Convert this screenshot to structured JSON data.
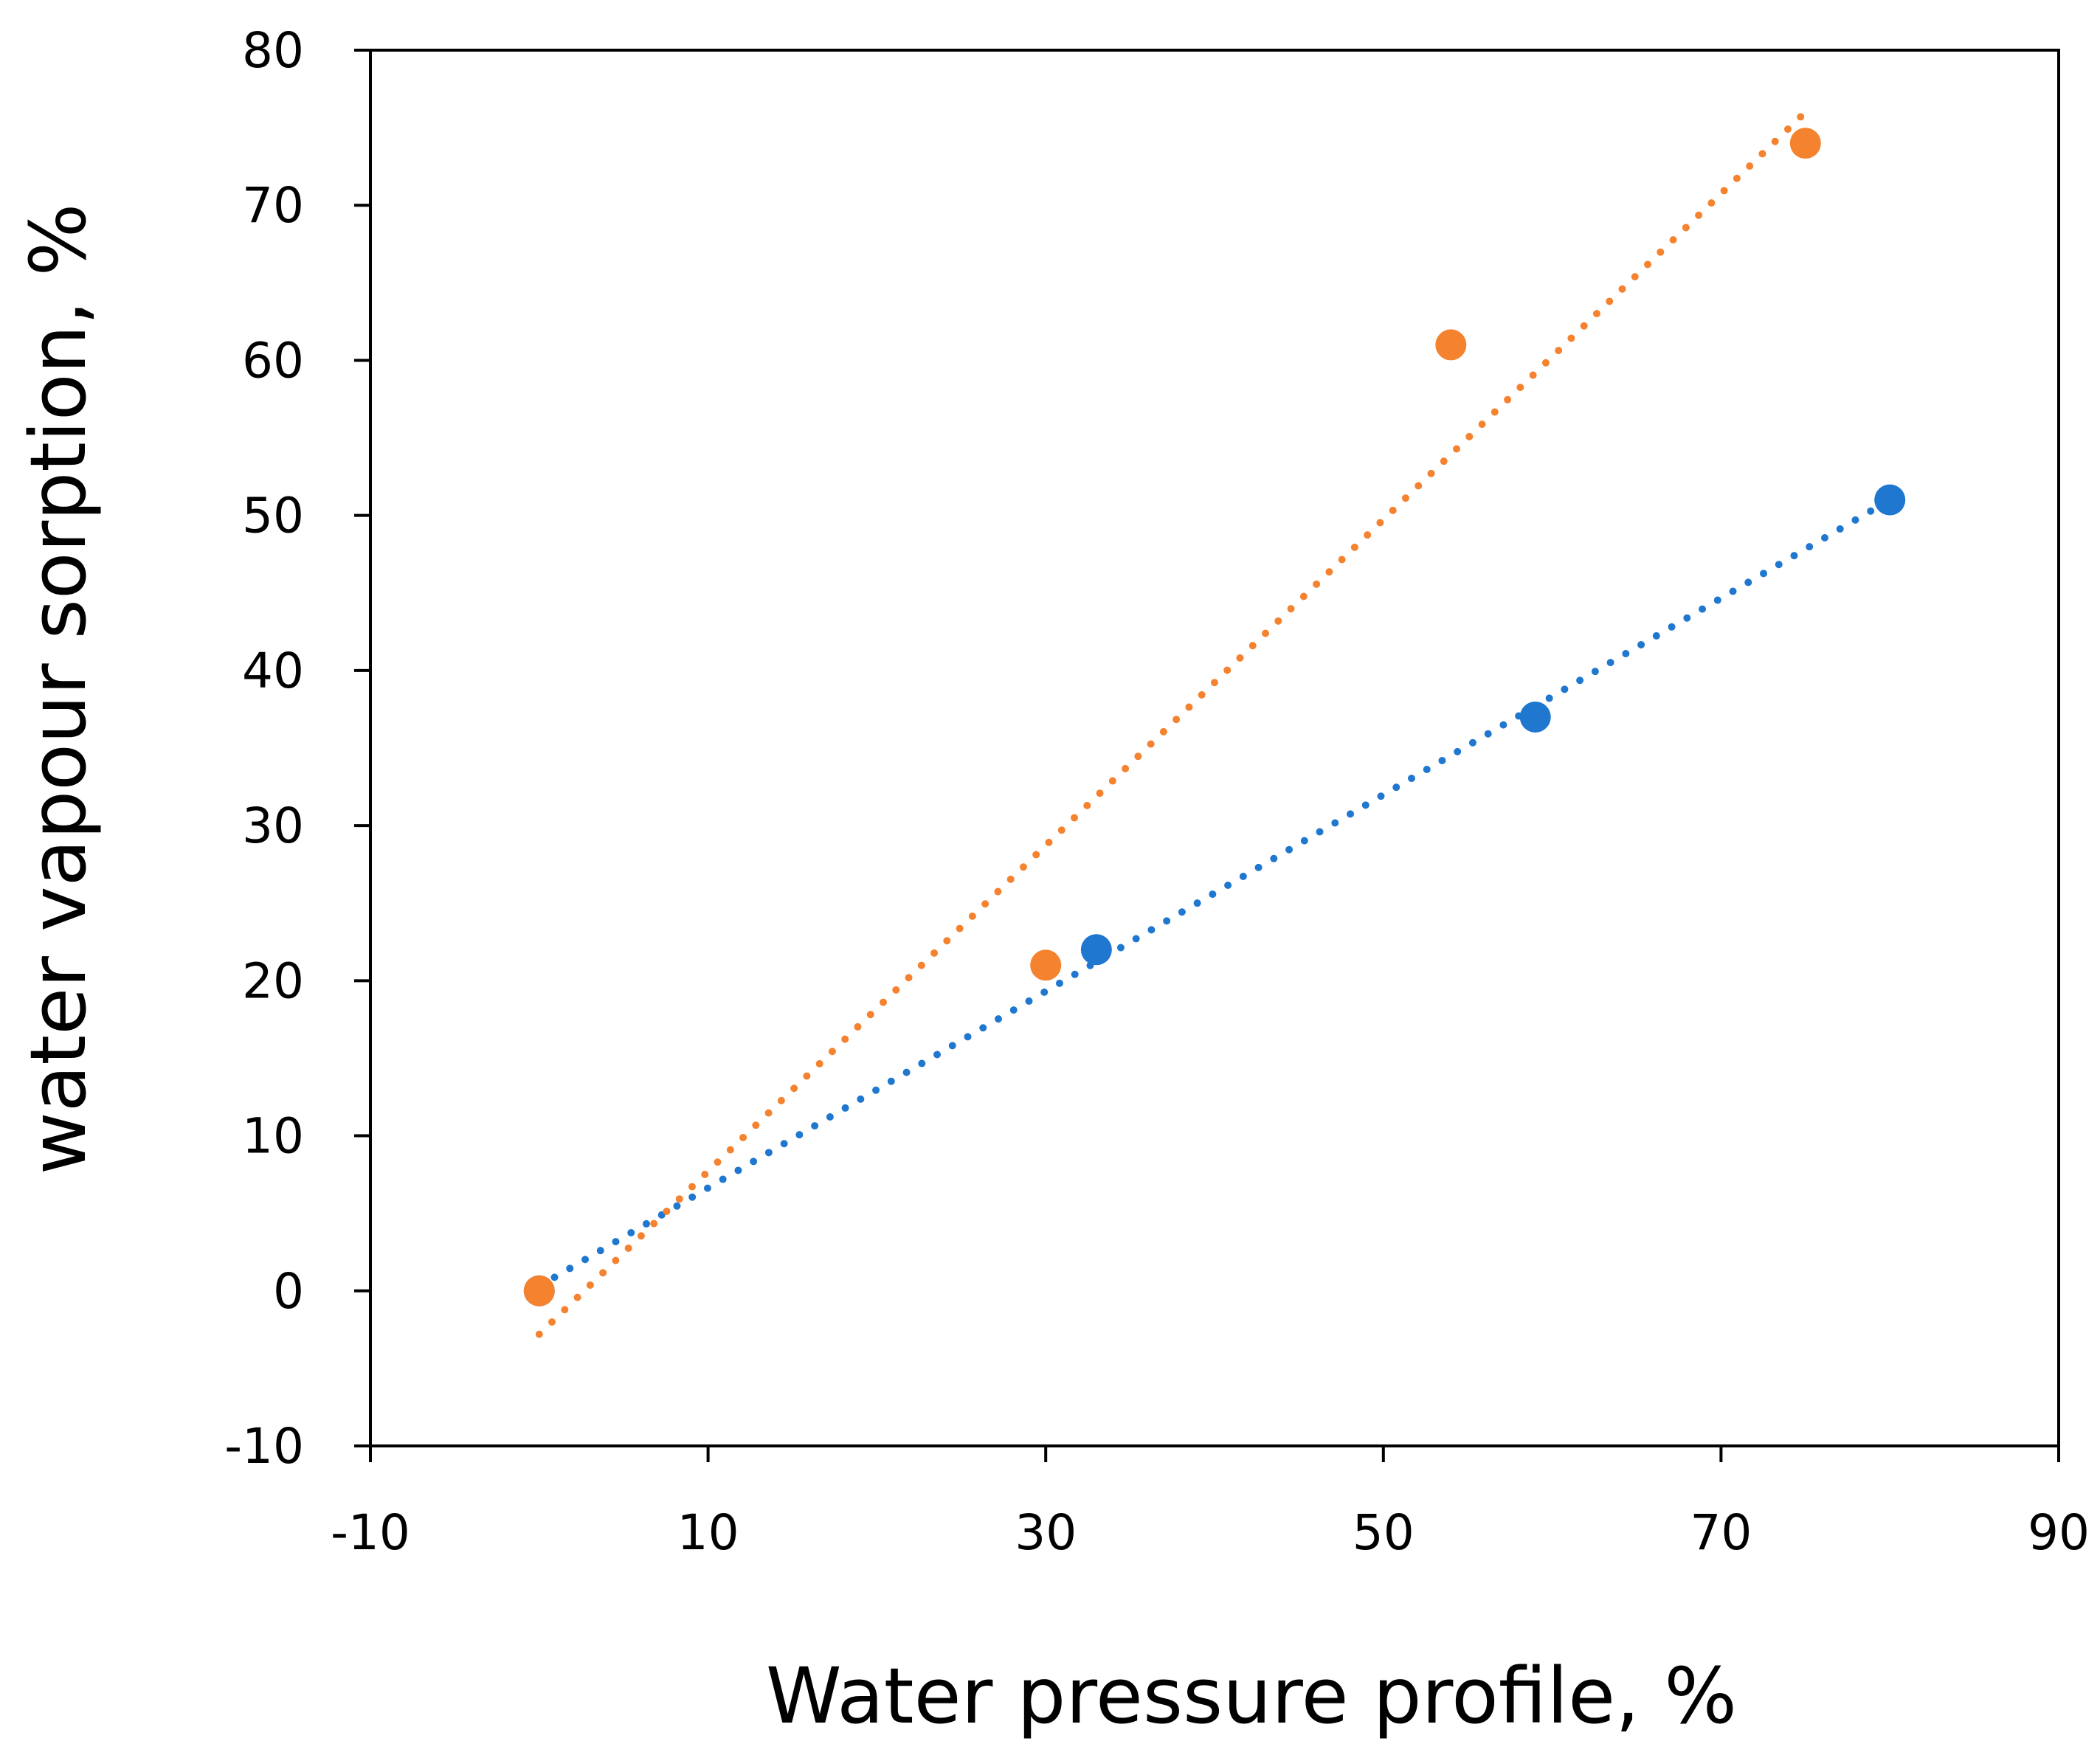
{
  "chart_data": {
    "type": "scatter",
    "title": "",
    "xlabel": "Water pressure profile, %",
    "ylabel": "water vapour sorption, %",
    "xlim": [
      -10,
      90
    ],
    "ylim": [
      -10,
      80
    ],
    "xticks": [
      -10,
      10,
      30,
      50,
      70,
      90
    ],
    "yticks": [
      -10,
      0,
      10,
      20,
      30,
      40,
      50,
      60,
      70,
      80
    ],
    "grid": false,
    "legend": "none",
    "series": [
      {
        "color": "#1F77CF",
        "points": [
          {
            "x": 0,
            "y": 0
          },
          {
            "x": 33,
            "y": 22
          },
          {
            "x": 59,
            "y": 37
          },
          {
            "x": 80,
            "y": 51
          }
        ],
        "trendline": {
          "style": "dotted",
          "x_start": 0,
          "y_start": 0.3,
          "x_end": 80,
          "y_end": 51
        }
      },
      {
        "color": "#F5822F",
        "points": [
          {
            "x": 0,
            "y": 0
          },
          {
            "x": 30,
            "y": 21
          },
          {
            "x": 54,
            "y": 61
          },
          {
            "x": 75,
            "y": 74
          }
        ],
        "trendline": {
          "style": "dotted",
          "x_start": 0,
          "y_start": -2.8,
          "x_end": 75,
          "y_end": 76
        }
      }
    ]
  }
}
